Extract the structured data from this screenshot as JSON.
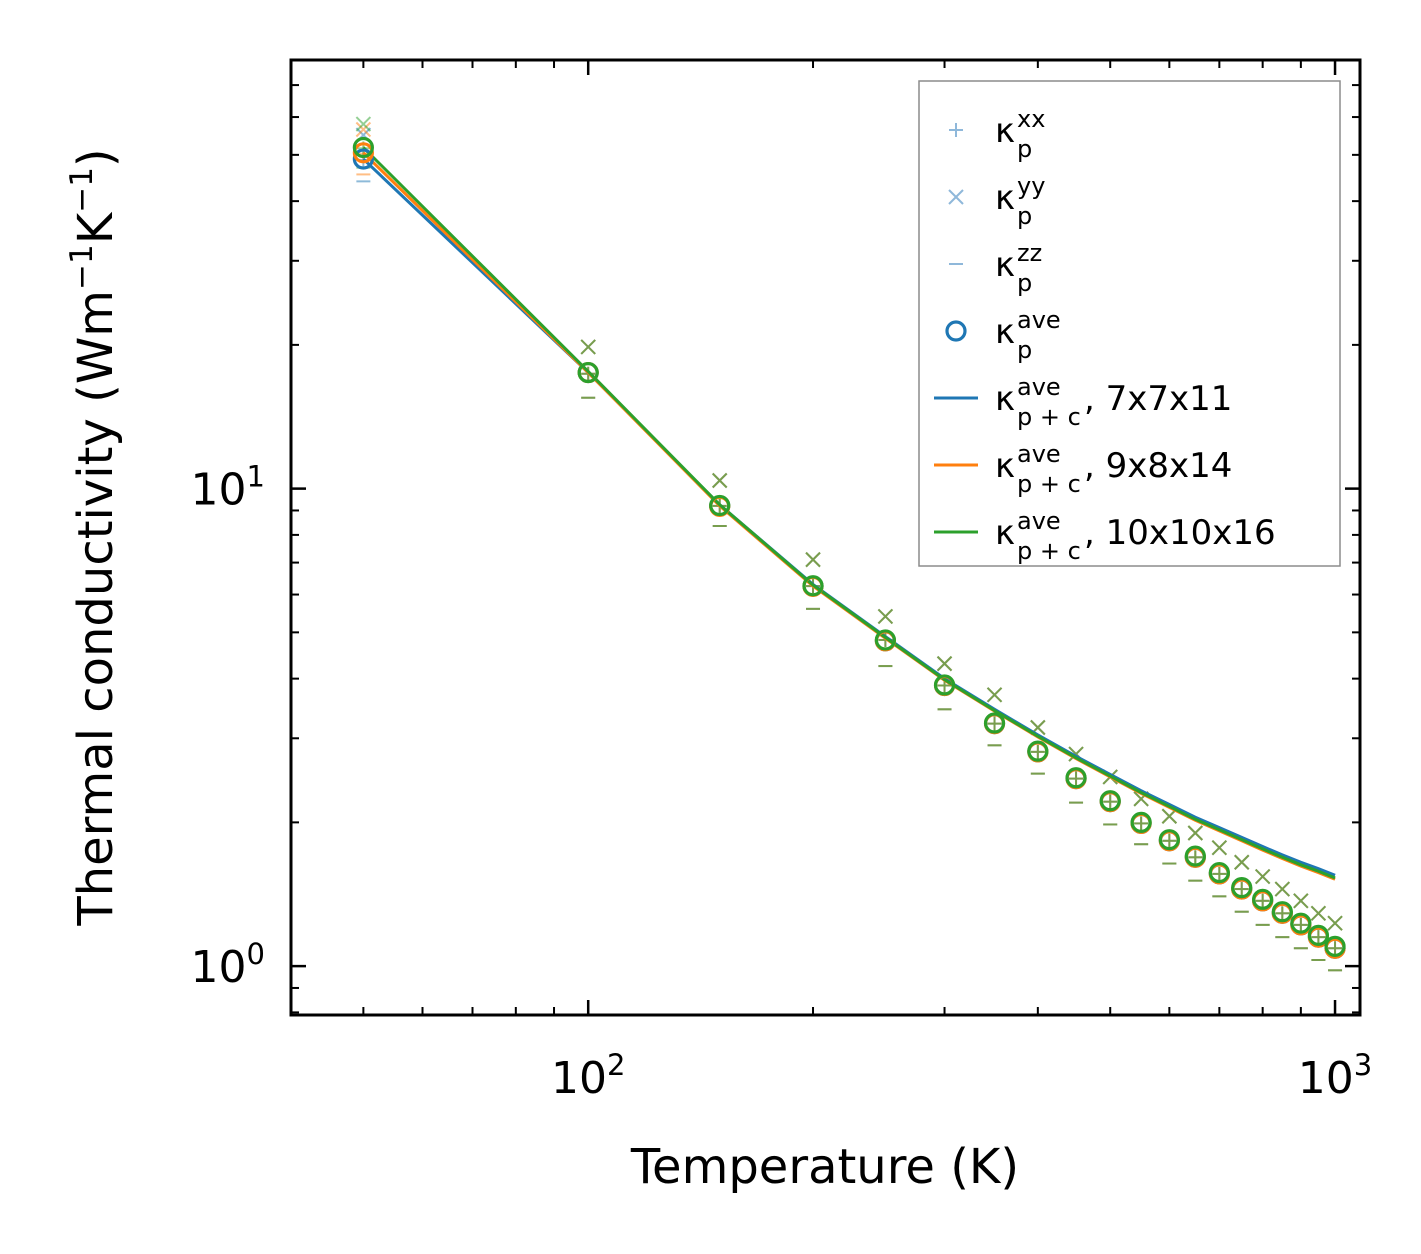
{
  "chart_data": {
    "type": "line",
    "scale": {
      "x": "log",
      "y": "log"
    },
    "xlim": [
      40,
      1080
    ],
    "ylim": [
      0.79,
      79
    ],
    "xlabel": "Temperature (K)",
    "ylabel_parts": [
      "Thermal conductivity (Wm",
      "−1",
      "K",
      "−1",
      ")"
    ],
    "x_ticks": [
      {
        "value": 100,
        "base": "10",
        "exp": "2"
      },
      {
        "value": 1000,
        "base": "10",
        "exp": "3"
      }
    ],
    "y_ticks": [
      {
        "value": 1,
        "base": "10",
        "exp": "0"
      },
      {
        "value": 10,
        "base": "10",
        "exp": "1"
      }
    ],
    "temperatures": [
      50,
      100,
      150,
      200,
      250,
      300,
      350,
      400,
      450,
      500,
      550,
      600,
      650,
      700,
      750,
      800,
      850,
      900,
      950,
      1000
    ],
    "scatter_series": [
      {
        "label": "xx",
        "marker": "plus",
        "groups": [
          {
            "color": "#1f77b4",
            "values": [
              48.8,
              17.4,
              9.2,
              6.25,
              4.82,
              3.87,
              3.22,
              2.81,
              2.47,
              2.21,
              1.99,
              1.83,
              1.69,
              1.56,
              1.45,
              1.37,
              1.29,
              1.22,
              1.15,
              1.09
            ]
          },
          {
            "color": "#ff7f0e",
            "values": [
              50.3,
              17.4,
              9.2,
              6.25,
              4.82,
              3.87,
              3.22,
              2.81,
              2.47,
              2.21,
              1.99,
              1.83,
              1.69,
              1.56,
              1.45,
              1.37,
              1.29,
              1.22,
              1.15,
              1.09
            ]
          },
          {
            "color": "#2ca02c",
            "values": [
              51.6,
              17.4,
              9.2,
              6.25,
              4.82,
              3.87,
              3.22,
              2.81,
              2.47,
              2.21,
              1.99,
              1.83,
              1.69,
              1.56,
              1.45,
              1.37,
              1.29,
              1.22,
              1.15,
              1.09
            ]
          }
        ]
      },
      {
        "label": "yy",
        "marker": "x",
        "groups": [
          {
            "color": "#1f77b4",
            "values": [
              55.0,
              19.8,
              10.4,
              7.1,
              5.4,
              4.3,
              3.7,
              3.16,
              2.78,
              2.49,
              2.24,
              2.06,
              1.9,
              1.77,
              1.65,
              1.54,
              1.45,
              1.37,
              1.29,
              1.23
            ]
          },
          {
            "color": "#ff7f0e",
            "values": [
              56.5,
              19.8,
              10.4,
              7.1,
              5.4,
              4.3,
              3.7,
              3.16,
              2.78,
              2.49,
              2.24,
              2.06,
              1.9,
              1.77,
              1.65,
              1.54,
              1.45,
              1.37,
              1.29,
              1.23
            ]
          },
          {
            "color": "#2ca02c",
            "values": [
              58.0,
              19.8,
              10.4,
              7.1,
              5.4,
              4.3,
              3.7,
              3.16,
              2.78,
              2.49,
              2.24,
              2.06,
              1.9,
              1.77,
              1.65,
              1.54,
              1.45,
              1.37,
              1.29,
              1.23
            ]
          }
        ]
      },
      {
        "label": "zz",
        "marker": "hline",
        "groups": [
          {
            "color": "#1f77b4",
            "values": [
              44.0,
              15.5,
              8.35,
              5.6,
              4.25,
              3.45,
              2.9,
              2.53,
              2.2,
              1.98,
              1.8,
              1.64,
              1.51,
              1.4,
              1.3,
              1.22,
              1.15,
              1.09,
              1.03,
              0.98
            ]
          },
          {
            "color": "#ff7f0e",
            "values": [
              45.5,
              15.5,
              8.35,
              5.6,
              4.25,
              3.45,
              2.9,
              2.53,
              2.2,
              1.98,
              1.8,
              1.64,
              1.51,
              1.4,
              1.3,
              1.22,
              1.15,
              1.09,
              1.03,
              0.98
            ]
          },
          {
            "color": "#2ca02c",
            "values": [
              47.0,
              15.5,
              8.35,
              5.6,
              4.25,
              3.45,
              2.9,
              2.53,
              2.2,
              1.98,
              1.8,
              1.64,
              1.51,
              1.4,
              1.3,
              1.22,
              1.15,
              1.09,
              1.03,
              0.98
            ]
          }
        ]
      },
      {
        "label": "ave",
        "marker": "circle",
        "groups": [
          {
            "color": "#1f77b4",
            "values": [
              49.0,
              17.5,
              9.2,
              6.25,
              4.8,
              3.87,
              3.22,
              2.81,
              2.47,
              2.21,
              1.99,
              1.83,
              1.69,
              1.56,
              1.45,
              1.37,
              1.29,
              1.22,
              1.15,
              1.09
            ]
          },
          {
            "color": "#ff7f0e",
            "values": [
              50.5,
              17.5,
              9.18,
              6.24,
              4.8,
              3.87,
              3.22,
              2.81,
              2.47,
              2.21,
              1.99,
              1.83,
              1.69,
              1.56,
              1.45,
              1.37,
              1.29,
              1.22,
              1.15,
              1.09
            ]
          },
          {
            "color": "#2ca02c",
            "values": [
              51.8,
              17.5,
              9.22,
              6.26,
              4.82,
              3.88,
              3.23,
              2.82,
              2.48,
              2.22,
              2.0,
              1.84,
              1.7,
              1.57,
              1.46,
              1.38,
              1.3,
              1.23,
              1.16,
              1.1
            ]
          }
        ]
      }
    ],
    "line_series": [
      {
        "grid": "7x7x11",
        "color": "#1f77b4",
        "values": [
          49.0,
          17.5,
          9.25,
          6.3,
          4.9,
          4.0,
          3.45,
          3.05,
          2.75,
          2.52,
          2.33,
          2.18,
          2.05,
          1.95,
          1.86,
          1.78,
          1.71,
          1.65,
          1.6,
          1.55
        ]
      },
      {
        "grid": "9x8x14",
        "color": "#ff7f0e",
        "values": [
          50.5,
          17.5,
          9.2,
          6.25,
          4.86,
          3.97,
          3.42,
          3.02,
          2.72,
          2.49,
          2.3,
          2.15,
          2.02,
          1.92,
          1.83,
          1.75,
          1.68,
          1.62,
          1.57,
          1.52
        ]
      },
      {
        "grid": "10x10x16",
        "color": "#2ca02c",
        "values": [
          51.8,
          17.6,
          9.25,
          6.28,
          4.88,
          3.98,
          3.43,
          3.03,
          2.73,
          2.5,
          2.31,
          2.16,
          2.03,
          1.93,
          1.84,
          1.76,
          1.69,
          1.63,
          1.58,
          1.53
        ]
      }
    ],
    "legend": {
      "position": "upper-right",
      "entries": [
        {
          "symbol": "κ",
          "sub": "p",
          "sup": "xx",
          "suffix": "",
          "marker": "plus",
          "color": "#8fb8da"
        },
        {
          "symbol": "κ",
          "sub": "p",
          "sup": "yy",
          "suffix": "",
          "marker": "x",
          "color": "#8fb8da"
        },
        {
          "symbol": "κ",
          "sub": "p",
          "sup": "zz",
          "suffix": "",
          "marker": "hline",
          "color": "#8fb8da"
        },
        {
          "symbol": "κ",
          "sub": "p",
          "sup": "ave",
          "suffix": "",
          "marker": "circle",
          "color": "#1f77b4"
        },
        {
          "symbol": "κ",
          "sub": "p + c",
          "sup": "ave",
          "suffix": ", 7x7x11",
          "marker": "line",
          "color": "#1f77b4"
        },
        {
          "symbol": "κ",
          "sub": "p + c",
          "sup": "ave",
          "suffix": ", 9x8x14",
          "marker": "line",
          "color": "#ff7f0e"
        },
        {
          "symbol": "κ",
          "sub": "p + c",
          "sup": "ave",
          "suffix": ", 10x10x16",
          "marker": "line",
          "color": "#2ca02c"
        }
      ]
    }
  }
}
